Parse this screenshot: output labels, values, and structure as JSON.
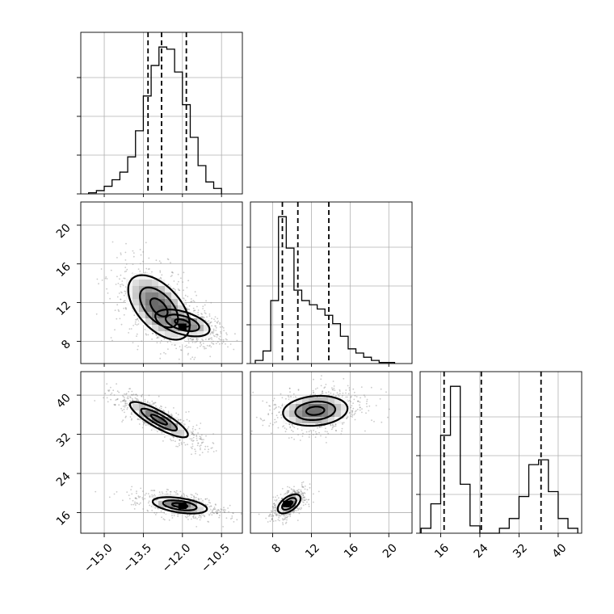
{
  "chart_data": {
    "type": "corner",
    "parameters": [
      {
        "ticks": [
          -15.0,
          -13.5,
          -12.0,
          -10.5
        ],
        "tick_labels": [
          "−15.0",
          "−13.5",
          "−12.0",
          "−10.5"
        ],
        "range": [
          -15.9,
          -9.7
        ]
      },
      {
        "ticks": [
          8,
          12,
          16,
          20
        ],
        "tick_labels": [
          "8",
          "12",
          "16",
          "20"
        ],
        "range": [
          5.7,
          22.4
        ]
      },
      {
        "ticks": [
          16,
          24,
          32,
          40
        ],
        "tick_labels": [
          "16",
          "24",
          "32",
          "40"
        ],
        "range": [
          11.8,
          44.8
        ]
      }
    ],
    "grid": true,
    "histograms": [
      {
        "parameter": 0,
        "bin_edges": [
          -15.6,
          -15.3,
          -15.0,
          -14.7,
          -14.4,
          -14.1,
          -13.8,
          -13.5,
          -13.2,
          -12.9,
          -12.6,
          -12.3,
          -12.0,
          -11.7,
          -11.4,
          -11.1,
          -10.8,
          -10.5
        ],
        "counts": [
          1,
          3,
          7,
          13,
          20,
          34,
          58,
          90,
          118,
          135,
          133,
          112,
          82,
          52,
          26,
          11,
          5
        ],
        "quantiles": [
          -13.32,
          -12.8,
          -11.85
        ]
      },
      {
        "parameter": 1,
        "bin_edges": [
          6.2,
          7.0,
          7.8,
          8.6,
          9.4,
          10.2,
          11.0,
          11.8,
          12.6,
          13.4,
          14.2,
          15.0,
          15.8,
          16.6,
          17.4,
          18.2,
          19.0,
          19.8,
          20.6
        ],
        "counts": [
          3,
          12,
          60,
          140,
          110,
          70,
          60,
          56,
          52,
          46,
          38,
          26,
          14,
          10,
          6,
          3,
          1,
          1
        ],
        "quantiles": [
          9.0,
          10.6,
          13.8
        ]
      },
      {
        "parameter": 2,
        "bin_edges": [
          12.0,
          14.0,
          16.0,
          18.0,
          20.0,
          22.0,
          24.0,
          26.0,
          28.0,
          30.0,
          32.0,
          34.0,
          36.0,
          38.0,
          40.0,
          42.0,
          44.0
        ],
        "counts": [
          2,
          12,
          40,
          60,
          20,
          3,
          0,
          0,
          2,
          6,
          15,
          28,
          30,
          17,
          6,
          2
        ],
        "quantiles": [
          16.7,
          24.3,
          36.5
        ]
      }
    ],
    "pairs": [
      {
        "x": 0,
        "y": 1,
        "clusters": [
          {
            "mean": [
              -12.9,
              11.5
            ],
            "sd": [
              0.85,
              2.4
            ],
            "corr": -0.55,
            "weight": 0.45
          },
          {
            "mean": [
              -12.0,
              9.9
            ],
            "sd": [
              0.75,
              1.0
            ],
            "corr": -0.5,
            "weight": 0.55
          }
        ],
        "peak": [
          -12.0,
          9.5
        ],
        "contour_levels": [
          0.39,
          0.86,
          1.39
        ]
      },
      {
        "x": 0,
        "y": 2,
        "clusters": [
          {
            "mean": [
              -12.9,
              35.0
            ],
            "sd": [
              0.8,
              2.6
            ],
            "corr": -0.85,
            "weight": 0.5
          },
          {
            "mean": [
              -12.1,
              17.5
            ],
            "sd": [
              0.75,
              1.2
            ],
            "corr": -0.45,
            "weight": 0.5
          }
        ],
        "peak": [
          -12.0,
          17.4
        ],
        "contour_levels": [
          0.39,
          0.86,
          1.39
        ]
      },
      {
        "x": 1,
        "y": 2,
        "clusters": [
          {
            "mean": [
              12.4,
              36.8
            ],
            "sd": [
              2.4,
              2.2
            ],
            "corr": 0.15,
            "weight": 0.5
          },
          {
            "mean": [
              9.7,
              17.8
            ],
            "sd": [
              0.85,
              1.4
            ],
            "corr": 0.55,
            "weight": 0.5
          }
        ],
        "peak": [
          9.5,
          17.8
        ],
        "contour_levels": [
          0.39,
          0.86,
          1.39
        ]
      }
    ]
  }
}
